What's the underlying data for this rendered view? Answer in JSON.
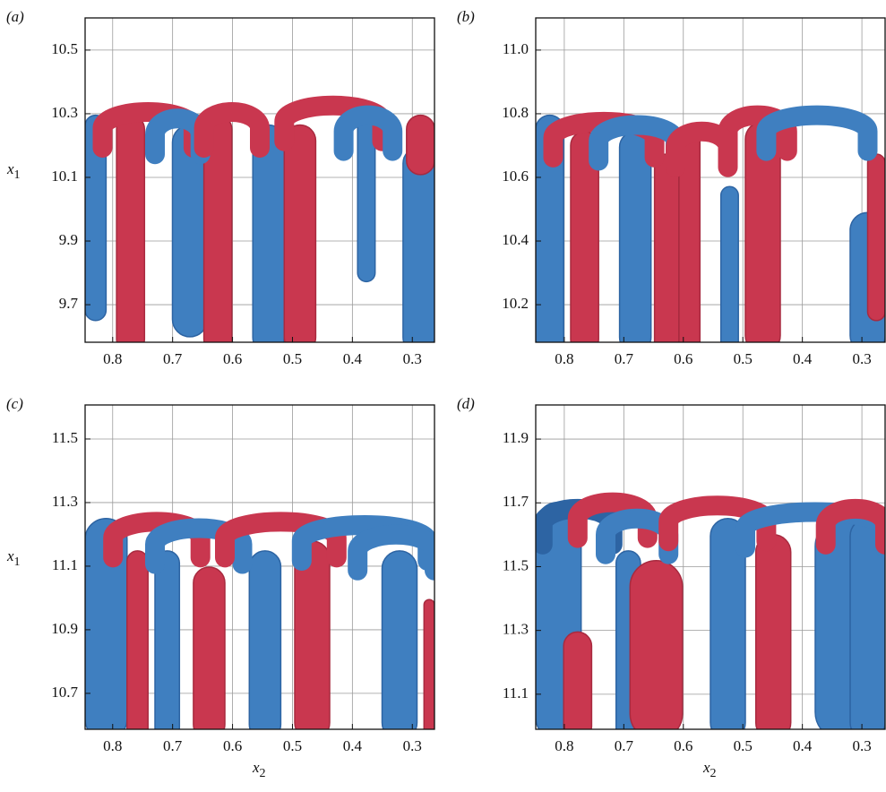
{
  "chart_data": [
    {
      "type": "isosurface",
      "label": "(a)",
      "ylabel": {
        "base": "x",
        "sub": "1"
      },
      "xlim": [
        0.846,
        0.263
      ],
      "ylim": [
        9.582,
        10.601
      ],
      "xticks": [
        0.8,
        0.7,
        0.6,
        0.5,
        0.4,
        0.3
      ],
      "yticks": [
        9.7,
        9.9,
        10.1,
        10.3,
        10.5
      ],
      "grid": true
    },
    {
      "type": "isosurface",
      "label": "(b)",
      "xlim": [
        0.848,
        0.261
      ],
      "ylim": [
        10.082,
        11.101
      ],
      "xticks": [
        0.8,
        0.7,
        0.6,
        0.5,
        0.4,
        0.3
      ],
      "yticks": [
        10.2,
        10.4,
        10.6,
        10.8,
        {
          "value": 11,
          "label": "11.0"
        }
      ],
      "grid": true
    },
    {
      "type": "isosurface",
      "label": "(c)",
      "ylabel": {
        "base": "x",
        "sub": "1"
      },
      "xlabel": {
        "base": "x",
        "sub": "2"
      },
      "xlim": [
        0.846,
        0.263
      ],
      "ylim": [
        10.587,
        11.607
      ],
      "xticks": [
        0.8,
        0.7,
        0.6,
        0.5,
        0.4,
        0.3
      ],
      "yticks": [
        10.7,
        10.9,
        11.1,
        11.3,
        11.5
      ],
      "grid": true
    },
    {
      "type": "isosurface",
      "label": "(d)",
      "xlabel": {
        "base": "x",
        "sub": "2"
      },
      "xlim": [
        0.848,
        0.261
      ],
      "ylim": [
        10.99,
        12.007
      ],
      "xticks": [
        0.8,
        0.7,
        0.6,
        0.5,
        0.4,
        0.3
      ],
      "yticks": [
        11.1,
        11.3,
        11.5,
        11.7,
        11.9
      ],
      "grid": true
    }
  ]
}
